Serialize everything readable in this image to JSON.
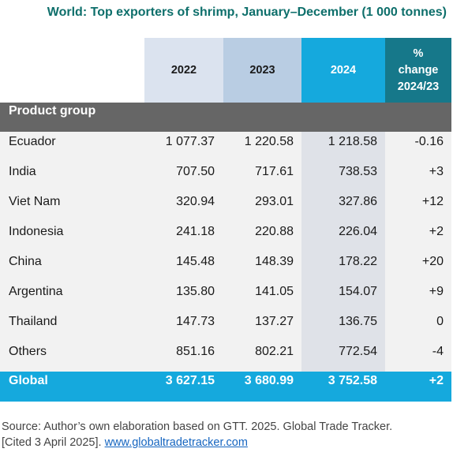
{
  "title": "World: Top exporters of shrimp, January–December (1 000 tonnes)",
  "header": {
    "col_2022": "2022",
    "col_2023": "2023",
    "col_2024": "2024",
    "col_change_line1": "%",
    "col_change_line2": "change",
    "col_change_line3": "2024/23"
  },
  "product_group_label": "Product group",
  "rows": [
    {
      "name": "Ecuador",
      "v2022": "1 077.37",
      "v2023": "1 220.58",
      "v2024": "1 218.58",
      "change": "-0.16"
    },
    {
      "name": "India",
      "v2022": "707.50",
      "v2023": "717.61",
      "v2024": "738.53",
      "change": "+3"
    },
    {
      "name": "Viet Nam",
      "v2022": "320.94",
      "v2023": "293.01",
      "v2024": "327.86",
      "change": "+12"
    },
    {
      "name": "Indonesia",
      "v2022": "241.18",
      "v2023": "220.88",
      "v2024": "226.04",
      "change": "+2"
    },
    {
      "name": "China",
      "v2022": "145.48",
      "v2023": "148.39",
      "v2024": "178.22",
      "change": "+20"
    },
    {
      "name": "Argentina",
      "v2022": "135.80",
      "v2023": "141.05",
      "v2024": "154.07",
      "change": "+9"
    },
    {
      "name": "Thailand",
      "v2022": "147.73",
      "v2023": "137.27",
      "v2024": "136.75",
      "change": "0"
    },
    {
      "name": "Others",
      "v2022": "851.16",
      "v2023": "802.21",
      "v2024": "772.54",
      "change": "-4"
    }
  ],
  "global": {
    "name": "Global",
    "v2022": "3 627.15",
    "v2023": "3 680.99",
    "v2024": "3 752.58",
    "change": "+2"
  },
  "source": {
    "line1": "Source: Author’s own elaboration based on GTT. 2025. Global Trade Tracker.",
    "line2_prefix": "[Cited 3 April 2025]. ",
    "link_text": "www.globaltradetracker.com"
  },
  "colors": {
    "title": "#0e6f6b",
    "header_2022": "#dbe3ef",
    "header_2023": "#b9cde3",
    "header_2024": "#15a9dd",
    "header_change": "#16788a",
    "product_group_bar": "#666666",
    "global_bar": "#15a9dd"
  }
}
